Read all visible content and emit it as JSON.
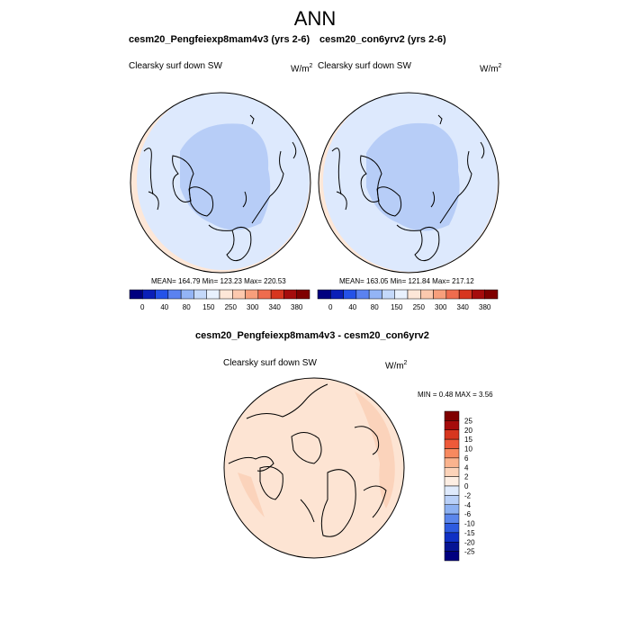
{
  "page": {
    "title": "ANN"
  },
  "panels": [
    {
      "title": "cesm20_Pengfeiexp8mam4v3 (yrs 2-6)",
      "variable": "Clearsky surf down SW",
      "units_base": "W/m",
      "units_exp": "2",
      "stats": "MEAN= 164.79  Min= 123.23  Max= 220.53"
    },
    {
      "title": "cesm20_con6yrv2 (yrs 2-6)",
      "variable": "Clearsky surf down SW",
      "units_base": "W/m",
      "units_exp": "2",
      "stats": "MEAN= 163.05  Min= 121.84  Max= 217.12"
    }
  ],
  "abs_colorbar": {
    "labels": [
      "0",
      "40",
      "80",
      "150",
      "250",
      "300",
      "340",
      "380"
    ],
    "colors": [
      "#00007f",
      "#0a1fb8",
      "#2452e8",
      "#5b82f0",
      "#93b4f5",
      "#c4d9fa",
      "#e8f1fd",
      "#fde7d8",
      "#fcc9ae",
      "#f79f7c",
      "#ee6c4e",
      "#d7361f",
      "#a50c0c",
      "#7f0000"
    ]
  },
  "diff_panel": {
    "title": "cesm20_Pengfeiexp8mam4v3 - cesm20_con6yrv2",
    "variable": "Clearsky surf down SW",
    "units_base": "W/m",
    "units_exp": "2",
    "stats": "MIN =  0.48 MAX =  3.56"
  },
  "diff_colorbar": {
    "labels": [
      "25",
      "20",
      "15",
      "10",
      "6",
      "4",
      "2",
      "0",
      "-2",
      "-4",
      "-6",
      "-10",
      "-15",
      "-20",
      "-25"
    ],
    "colors": [
      "#7f0000",
      "#a50c0c",
      "#d7361f",
      "#ee5a3a",
      "#f7895f",
      "#fab38e",
      "#fcd3b9",
      "#fdeee3",
      "#dfeafc",
      "#b9d0f8",
      "#8db1f2",
      "#5b86ec",
      "#2e5be0",
      "#1030c4",
      "#061494",
      "#00007f"
    ]
  },
  "chart_data": [
    {
      "type": "heatmap",
      "projection": "north polar stereographic",
      "title": "cesm20_Pengfeiexp8mam4v3 (yrs 2-6)",
      "field": "Clearsky surf down SW",
      "units": "W/m2",
      "mean": 164.79,
      "min": 123.23,
      "max": 220.53,
      "levels": [
        0,
        40,
        80,
        150,
        250,
        300,
        340,
        380
      ]
    },
    {
      "type": "heatmap",
      "projection": "north polar stereographic",
      "title": "cesm20_con6yrv2 (yrs 2-6)",
      "field": "Clearsky surf down SW",
      "units": "W/m2",
      "mean": 163.05,
      "min": 121.84,
      "max": 217.12,
      "levels": [
        0,
        40,
        80,
        150,
        250,
        300,
        340,
        380
      ]
    },
    {
      "type": "heatmap",
      "projection": "north polar stereographic",
      "title": "cesm20_Pengfeiexp8mam4v3 - cesm20_con6yrv2",
      "field": "Clearsky surf down SW difference",
      "units": "W/m2",
      "min": 0.48,
      "max": 3.56,
      "levels": [
        -25,
        -20,
        -15,
        -10,
        -6,
        -4,
        -2,
        0,
        2,
        4,
        6,
        10,
        15,
        20,
        25
      ]
    }
  ]
}
